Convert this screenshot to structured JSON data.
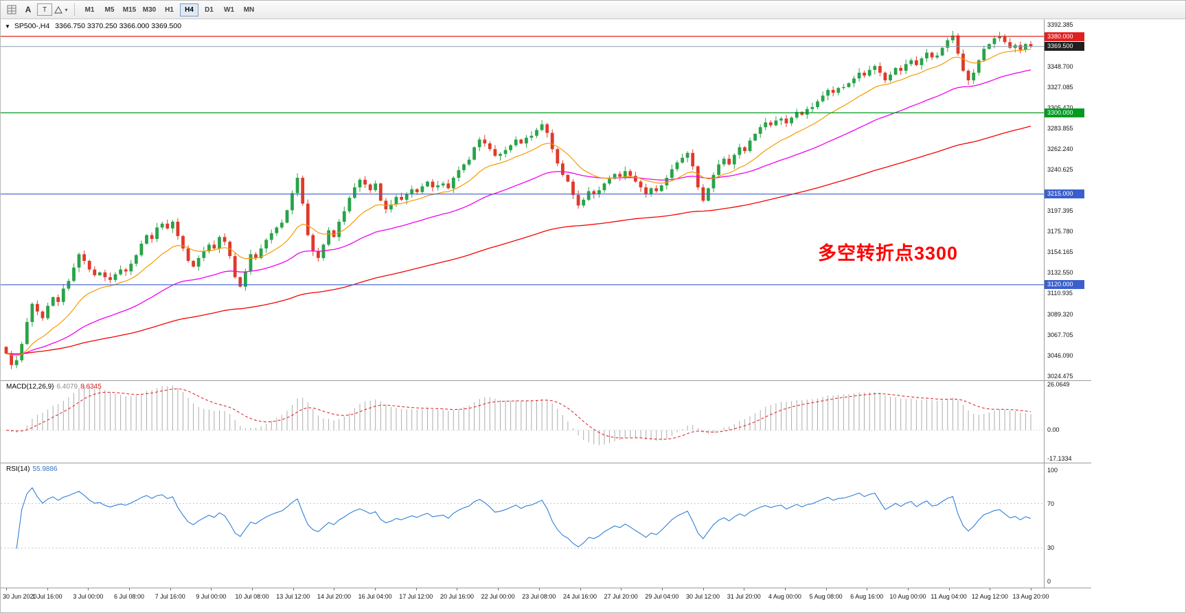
{
  "toolbar": {
    "tool_buttons": [
      {
        "label": "A"
      },
      {
        "label": "T"
      }
    ],
    "shapes_dropdown_arrow": "▾",
    "timeframes": [
      "M1",
      "M5",
      "M15",
      "M30",
      "H1",
      "H4",
      "D1",
      "W1",
      "MN"
    ],
    "active_timeframe": "H4"
  },
  "chart": {
    "collapse_arrow": "▼",
    "title_symbol": "SP500-,H4",
    "title_ohlc": "3366.750 3370.250 3366.000 3369.500",
    "annotation": {
      "text": "多空转折点3300",
      "color": "#FF0000"
    },
    "price_axis": {
      "min": 3020,
      "max": 3398,
      "labels": [
        "3392.385",
        "3348.700",
        "3327.085",
        "3305.470",
        "3283.855",
        "3262.240",
        "3240.625",
        "3197.395",
        "3175.780",
        "3154.165",
        "3132.550",
        "3110.935",
        "3089.320",
        "3067.705",
        "3046.090",
        "3024.475"
      ]
    },
    "hlines": [
      {
        "price": 3380.0,
        "color": "#E02020",
        "badge": "3380.000"
      },
      {
        "price": 3300.0,
        "color": "#009B20",
        "badge": "3300.000"
      },
      {
        "price": 3215.0,
        "color": "#3A5FCD",
        "badge": "3215.000"
      },
      {
        "price": 3120.0,
        "color": "#3A5FCD",
        "badge": "3120.000"
      }
    ],
    "bid": {
      "price": 3369.5,
      "badge": "3369.500",
      "badge_color": "#1f1f1f",
      "line_color": "#8a9bb0"
    },
    "time_axis": [
      "30 Jun 2020",
      "1 Jul 16:00",
      "3 Jul 00:00",
      "6 Jul 08:00",
      "7 Jul 16:00",
      "9 Jul 00:00",
      "10 Jul 08:00",
      "13 Jul 12:00",
      "14 Jul 20:00",
      "16 Jul 04:00",
      "17 Jul 12:00",
      "20 Jul 16:00",
      "22 Jul 00:00",
      "23 Jul 08:00",
      "24 Jul 16:00",
      "27 Jul 20:00",
      "29 Jul 04:00",
      "30 Jul 12:00",
      "31 Jul 20:00",
      "4 Aug 00:00",
      "5 Aug 08:00",
      "6 Aug 16:00",
      "10 Aug 00:00",
      "11 Aug 04:00",
      "12 Aug 12:00",
      "13 Aug 20:00"
    ],
    "colors": {
      "up": "#29A34A",
      "down": "#DF3A2B",
      "ma_fast": "#F59A00",
      "ma_mid": "#F000F0",
      "ma_slow": "#F50000"
    }
  },
  "macd": {
    "label": "MACD(12,26,9)",
    "value_main": "6.4079",
    "value_signal": "8.6345",
    "axis": [
      "26.0649",
      "0.00",
      "-17.1334"
    ],
    "range": {
      "min": -17.1334,
      "max": 26.0649
    },
    "colors": {
      "histogram": "#ABABAB",
      "signal": "#DD2C2C"
    }
  },
  "rsi": {
    "label": "RSI(14)",
    "value": "55.9886",
    "axis": [
      "100",
      "70",
      "30",
      "0"
    ],
    "levels": [
      70,
      30
    ],
    "color": "#2F7ED8"
  },
  "chart_data": {
    "type": "candlestick",
    "symbol": "SP500-",
    "timeframe": "H4",
    "first_open": 3055,
    "closes": [
      3048,
      3036,
      3041,
      3058,
      3081,
      3100,
      3092,
      3085,
      3098,
      3107,
      3102,
      3116,
      3124,
      3138,
      3152,
      3145,
      3136,
      3130,
      3133,
      3128,
      3125,
      3131,
      3136,
      3134,
      3142,
      3151,
      3163,
      3172,
      3168,
      3180,
      3184,
      3179,
      3186,
      3171,
      3158,
      3145,
      3139,
      3148,
      3155,
      3162,
      3158,
      3170,
      3165,
      3150,
      3128,
      3118,
      3134,
      3152,
      3148,
      3158,
      3167,
      3174,
      3180,
      3185,
      3198,
      3216,
      3232,
      3205,
      3172,
      3155,
      3148,
      3162,
      3177,
      3170,
      3186,
      3197,
      3211,
      3222,
      3230,
      3225,
      3219,
      3226,
      3208,
      3199,
      3204,
      3212,
      3209,
      3215,
      3220,
      3217,
      3223,
      3228,
      3222,
      3224,
      3226,
      3221,
      3232,
      3240,
      3246,
      3251,
      3264,
      3272,
      3268,
      3262,
      3255,
      3257,
      3261,
      3266,
      3272,
      3268,
      3274,
      3276,
      3282,
      3288,
      3279,
      3262,
      3247,
      3235,
      3228,
      3214,
      3203,
      3209,
      3218,
      3215,
      3219,
      3226,
      3231,
      3236,
      3233,
      3239,
      3234,
      3228,
      3222,
      3215,
      3221,
      3218,
      3224,
      3232,
      3241,
      3248,
      3253,
      3258,
      3244,
      3222,
      3208,
      3221,
      3235,
      3246,
      3252,
      3246,
      3256,
      3264,
      3260,
      3271,
      3278,
      3285,
      3290,
      3287,
      3292,
      3294,
      3289,
      3295,
      3301,
      3298,
      3304,
      3306,
      3312,
      3318,
      3324,
      3321,
      3326,
      3327,
      3331,
      3336,
      3342,
      3339,
      3345,
      3349,
      3342,
      3334,
      3340,
      3347,
      3344,
      3351,
      3355,
      3350,
      3357,
      3363,
      3358,
      3360,
      3368,
      3376,
      3381,
      3362,
      3344,
      3334,
      3342,
      3355,
      3367,
      3372,
      3378,
      3380,
      3374,
      3368,
      3371,
      3366,
      3372,
      3369.5
    ]
  }
}
